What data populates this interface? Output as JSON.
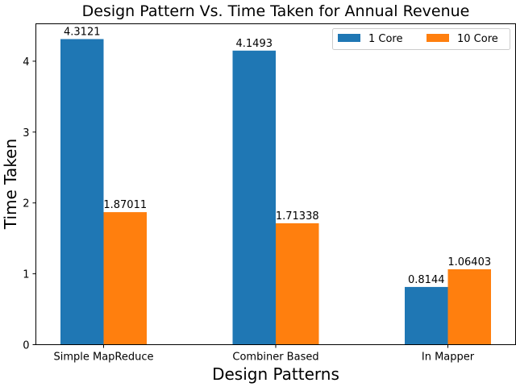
{
  "chart_data": {
    "type": "bar",
    "title": "Design Pattern Vs. Time Taken for Annual Revenue",
    "xlabel": "Design Patterns",
    "ylabel": "Time Taken",
    "categories": [
      "Simple MapReduce",
      "Combiner Based",
      "In Mapper"
    ],
    "series": [
      {
        "name": "1 Core",
        "values": [
          4.3121,
          4.1493,
          0.8144
        ],
        "labels": [
          "4.3121",
          "4.1493",
          "0.8144"
        ],
        "color": "#1f77b4"
      },
      {
        "name": "10 Core",
        "values": [
          1.87011,
          1.71338,
          1.06403
        ],
        "labels": [
          "1.87011",
          "1.71338",
          "1.06403"
        ],
        "color": "#ff7f0e"
      }
    ],
    "ylim": [
      0,
      4.528
    ],
    "yticks": [
      0,
      1,
      2,
      3,
      4
    ],
    "ytick_labels": [
      "0",
      "1",
      "2",
      "3",
      "4"
    ],
    "grid": false,
    "legend_position": "top-right",
    "legend_columns": 2
  }
}
